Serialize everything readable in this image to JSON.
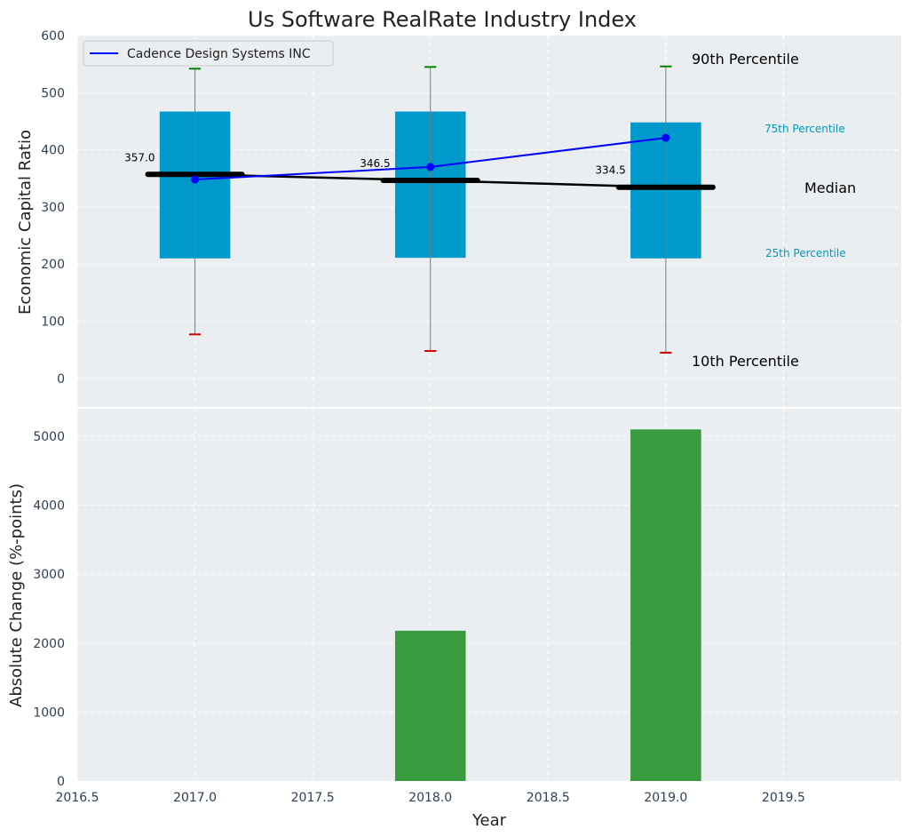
{
  "chart_data": [
    {
      "type": "box",
      "title": "Us Software RealRate Industry Index",
      "ylabel": "Economic Capital Ratio",
      "xlim": [
        2016.5,
        2020.0
      ],
      "ylim": [
        -50,
        600
      ],
      "yticks": [
        0,
        100,
        200,
        300,
        400,
        500,
        600
      ],
      "grid": true,
      "legend": {
        "placement": "top-left",
        "entries": [
          "Cadence Design Systems INC"
        ]
      },
      "years": [
        2017,
        2018,
        2019
      ],
      "p10": [
        77,
        48,
        45
      ],
      "p25": [
        210,
        211,
        210
      ],
      "median": [
        357.0,
        346.5,
        334.5
      ],
      "median_labels": [
        "357.0",
        "346.5",
        "334.5"
      ],
      "p75": [
        467,
        467,
        448
      ],
      "p90": [
        542,
        545,
        546
      ],
      "series": [
        {
          "name": "Cadence Design Systems INC",
          "x": [
            2017,
            2018,
            2019
          ],
          "y": [
            348,
            370,
            421
          ],
          "color": "#0000ff"
        }
      ],
      "annotations": {
        "p90": "90th Percentile",
        "p75": "75th Percentile",
        "median": "Median",
        "p25": "25th Percentile",
        "p10": "10th Percentile"
      },
      "colors": {
        "box": "#0099cc",
        "median": "#000000",
        "p90_cap": "#008000",
        "p10_cap": "#d00000",
        "annotation_quartile": "#0099bb"
      }
    },
    {
      "type": "bar",
      "xlabel": "Year",
      "ylabel": "Absolute Change (%-points)",
      "xlim": [
        2016.5,
        2020.0
      ],
      "ylim": [
        0,
        5400
      ],
      "xticks": [
        2016.5,
        2017.0,
        2017.5,
        2018.0,
        2018.5,
        2019.0,
        2019.5
      ],
      "xtick_labels": [
        "2016.5",
        "2017.0",
        "2017.5",
        "2018.0",
        "2018.5",
        "2019.0",
        "2019.5"
      ],
      "yticks": [
        0,
        1000,
        2000,
        3000,
        4000,
        5000
      ],
      "grid": true,
      "x": [
        2018,
        2019
      ],
      "values": [
        2180,
        5100
      ],
      "color": "#3a9a3e"
    }
  ]
}
